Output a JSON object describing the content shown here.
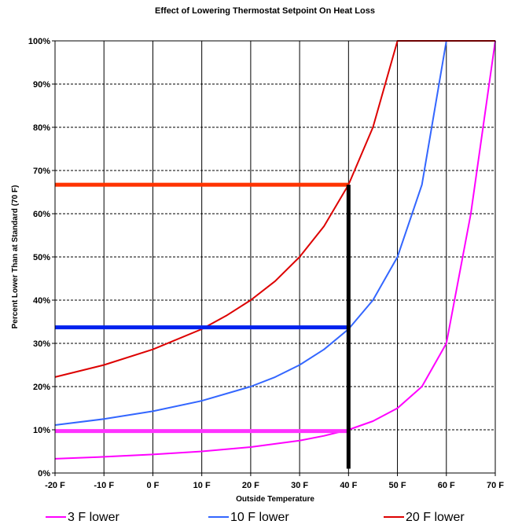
{
  "chart_data": {
    "type": "line",
    "title": "Effect of Lowering Thermostat Setpoint On Heat Loss",
    "xlabel": "Outside Temperature",
    "ylabel": "Percent Lower Than at Standard (70 F)",
    "xlim": [
      -20,
      70
    ],
    "ylim": [
      0,
      100
    ],
    "x_ticks": [
      -20,
      -10,
      0,
      10,
      20,
      30,
      40,
      50,
      60,
      70
    ],
    "x_tick_labels": [
      "-20 F",
      "-10 F",
      "0 F",
      "10 F",
      "20 F",
      "30 F",
      "40 F",
      "50 F",
      "60 F",
      "70 F"
    ],
    "y_ticks": [
      0,
      10,
      20,
      30,
      40,
      50,
      60,
      70,
      80,
      90,
      100
    ],
    "y_tick_labels": [
      "0%",
      "10%",
      "20%",
      "30%",
      "40%",
      "50%",
      "60%",
      "70%",
      "80%",
      "90%",
      "100%"
    ],
    "grid": true,
    "legend_position": "bottom",
    "series": [
      {
        "name": "3 F lower",
        "color": "#ff00ff",
        "x": [
          -20,
          -10,
          0,
          10,
          20,
          30,
          35,
          40,
          45,
          50,
          55,
          60,
          65,
          70
        ],
        "y": [
          3.3,
          3.75,
          4.3,
          5,
          6,
          7.5,
          8.6,
          10,
          12,
          15,
          20,
          30,
          60,
          100
        ]
      },
      {
        "name": "10 F lower",
        "color": "#3366ff",
        "x": [
          -20,
          -10,
          0,
          10,
          20,
          25,
          30,
          35,
          40,
          45,
          50,
          55,
          60
        ],
        "y": [
          11.1,
          12.5,
          14.3,
          16.7,
          20,
          22.2,
          25,
          28.6,
          33.3,
          40,
          50,
          66.7,
          100
        ]
      },
      {
        "name": "20 F lower",
        "color": "#dd0000",
        "x": [
          -20,
          -10,
          0,
          10,
          15,
          20,
          25,
          30,
          35,
          40,
          45,
          50,
          70
        ],
        "y": [
          22.2,
          25,
          28.6,
          33.3,
          36.4,
          40,
          44.4,
          50,
          57.1,
          66.7,
          80,
          100,
          100
        ]
      }
    ],
    "annotations": [
      {
        "type": "hline",
        "y": 66.7,
        "x_from": -20,
        "x_to": 40,
        "color": "#ff3300"
      },
      {
        "type": "hline",
        "y": 33.7,
        "x_from": -20,
        "x_to": 40,
        "color": "#0022ee"
      },
      {
        "type": "hline",
        "y": 9.7,
        "x_from": -20,
        "x_to": 40,
        "color": "#ff33ff"
      },
      {
        "type": "vline",
        "x": 40,
        "y_from": 1,
        "y_to": 66.7,
        "color": "#000000"
      }
    ]
  }
}
